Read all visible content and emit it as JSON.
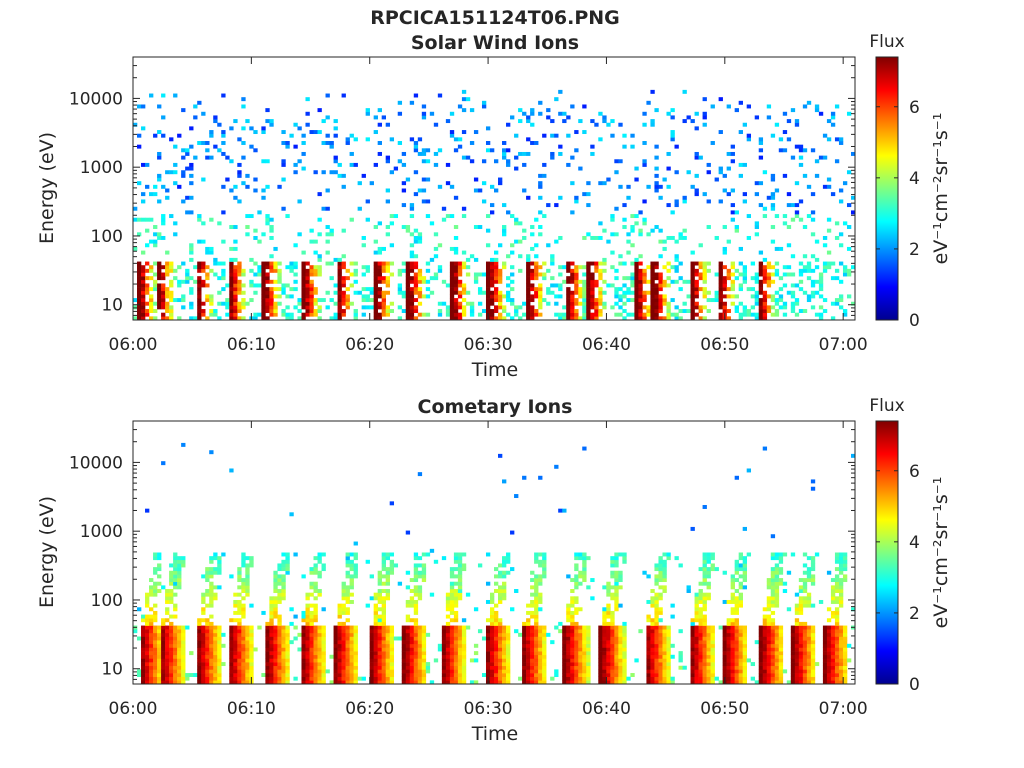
{
  "figure": {
    "title": "RPCICA151124T06.PNG"
  },
  "colors": {
    "colormap": [
      "#00008f",
      "#0000ff",
      "#0080ff",
      "#00ffff",
      "#80ff80",
      "#ffff00",
      "#ff8000",
      "#ff0000",
      "#800000"
    ],
    "axis": "#262626",
    "background": "#ffffff"
  },
  "chart_data": [
    {
      "type": "heatmap",
      "title": "Solar Wind Ions",
      "xlabel": "Time",
      "ylabel": "Energy (eV)",
      "x_range": [
        "06:00",
        "07:01"
      ],
      "x_ticks": [
        "06:00",
        "06:10",
        "06:20",
        "06:30",
        "06:40",
        "06:50",
        "07:00"
      ],
      "y_scale": "log",
      "y_range": [
        6,
        40000
      ],
      "y_ticks": [
        "10",
        "100",
        "1000",
        "10000"
      ],
      "colorbar": {
        "title": "Flux",
        "label": "eV⁻¹cm⁻²sr⁻¹s⁻¹",
        "range": [
          0,
          7.4
        ],
        "ticks": [
          "0",
          "2",
          "4",
          "6"
        ]
      },
      "grid": false,
      "pattern": "sparse",
      "pulse_times_min": [
        0.6,
        2.2,
        5.5,
        8.2,
        11.2,
        14.5,
        17.4,
        20.6,
        23.4,
        27.1,
        30.2,
        33.5,
        36.8,
        38.6,
        42.6,
        44.1,
        47.3,
        49.6,
        53.0
      ]
    },
    {
      "type": "heatmap",
      "title": "Cometary Ions",
      "xlabel": "Time",
      "ylabel": "Energy (eV)",
      "x_range": [
        "06:00",
        "07:01"
      ],
      "x_ticks": [
        "06:00",
        "06:10",
        "06:20",
        "06:30",
        "06:40",
        "06:50",
        "07:00"
      ],
      "y_scale": "log",
      "y_range": [
        6,
        40000
      ],
      "y_ticks": [
        "10",
        "100",
        "1000",
        "10000"
      ],
      "colorbar": {
        "title": "Flux",
        "label": "eV⁻¹cm⁻²sr⁻¹s⁻¹",
        "range": [
          0,
          7.4
        ],
        "ticks": [
          "0",
          "2",
          "4",
          "6"
        ]
      },
      "grid": false,
      "pattern": "bursts",
      "pulse_times_min": [
        0.8,
        2.5,
        5.6,
        8.3,
        11.4,
        14.4,
        17.2,
        20.2,
        23.0,
        26.3,
        30.0,
        33.1,
        36.6,
        39.7,
        43.5,
        47.3,
        50.1,
        53.2,
        55.9,
        58.6
      ]
    }
  ]
}
